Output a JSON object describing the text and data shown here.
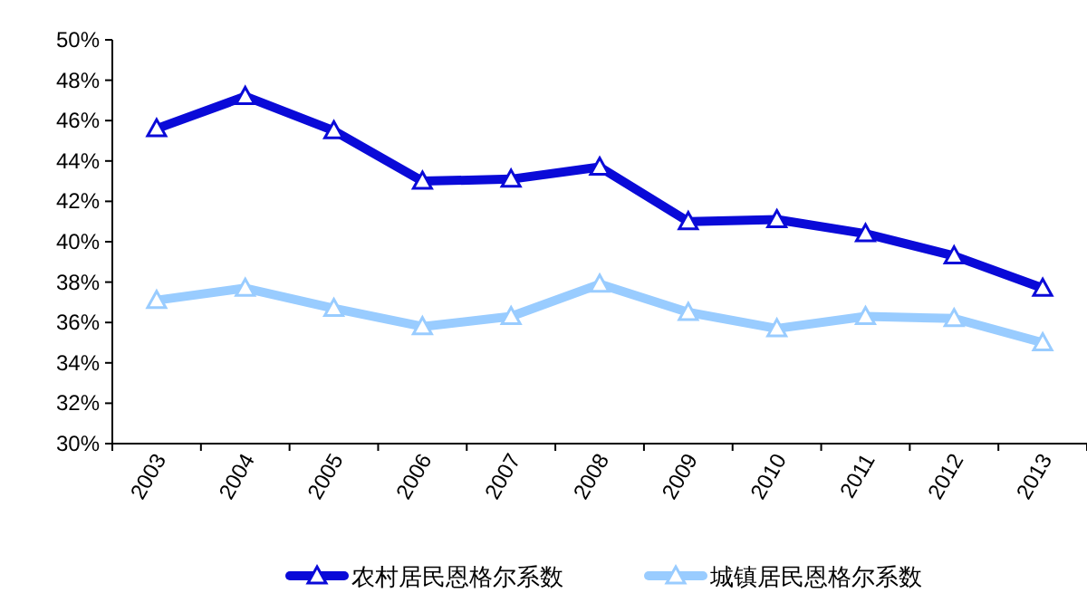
{
  "chart_data": {
    "type": "line",
    "categories": [
      "2003",
      "2004",
      "2005",
      "2006",
      "2007",
      "2008",
      "2009",
      "2010",
      "2011",
      "2012",
      "2013"
    ],
    "series": [
      {
        "name": "农村居民恩格尔系数",
        "color": "#0a0ad8",
        "values": [
          45.6,
          47.2,
          45.5,
          43.0,
          43.1,
          43.7,
          41.0,
          41.1,
          40.4,
          39.3,
          37.7
        ]
      },
      {
        "name": "城镇居民恩格尔系数",
        "color": "#99ccff",
        "values": [
          37.1,
          37.7,
          36.7,
          35.8,
          36.3,
          37.9,
          36.5,
          35.7,
          36.3,
          36.2,
          35.0
        ]
      }
    ],
    "ylim": [
      30,
      50
    ],
    "yticks": [
      {
        "value": 30,
        "label": "30%"
      },
      {
        "value": 32,
        "label": "32%"
      },
      {
        "value": 34,
        "label": "34%"
      },
      {
        "value": 36,
        "label": "36%"
      },
      {
        "value": 38,
        "label": "38%"
      },
      {
        "value": 40,
        "label": "40%"
      },
      {
        "value": 42,
        "label": "42%"
      },
      {
        "value": 44,
        "label": "44%"
      },
      {
        "value": 46,
        "label": "46%"
      },
      {
        "value": 48,
        "label": "48%"
      },
      {
        "value": 50,
        "label": "50%"
      }
    ],
    "grid": false,
    "legend": "bottom",
    "marker": "triangle",
    "line_style": "solid"
  }
}
